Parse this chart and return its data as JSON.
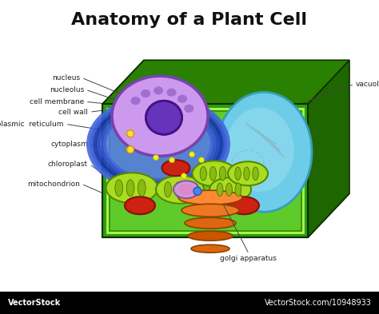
{
  "title": "Anatomy of a Plant Cell",
  "title_fontsize": 16,
  "title_fontweight": "bold",
  "background_color": "#ffffff",
  "watermark_left": "VectorStock",
  "watermark_right": "VectorStock.com/10948933",
  "footer_bg": "#000000",
  "footer_text_color": "#ffffff",
  "footer_fontsize": 7,
  "line_color": "#444444",
  "line_lw": 0.7,
  "label_fontsize": 6.5,
  "label_color": "#222222"
}
